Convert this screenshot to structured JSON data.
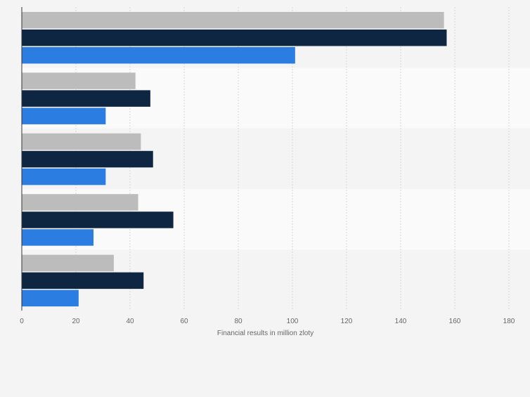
{
  "chart_data": {
    "type": "bar",
    "orientation": "horizontal",
    "categories": [
      "",
      "",
      "",
      "",
      ""
    ],
    "series": [
      {
        "values": [
          156,
          42,
          44,
          43,
          34
        ],
        "color": "#bcbcbc"
      },
      {
        "values": [
          157,
          47.5,
          48.5,
          56,
          45
        ],
        "color": "#0f2642"
      },
      {
        "values": [
          101,
          31,
          31,
          26.5,
          21
        ],
        "color": "#2b7de1"
      }
    ],
    "xlabel": "Financial results in million zloty",
    "ylabel": "",
    "xlim": [
      0,
      180
    ],
    "xticks": [
      0,
      20,
      40,
      60,
      80,
      100,
      120,
      140,
      160,
      180
    ],
    "grid": true,
    "legend": "none"
  }
}
